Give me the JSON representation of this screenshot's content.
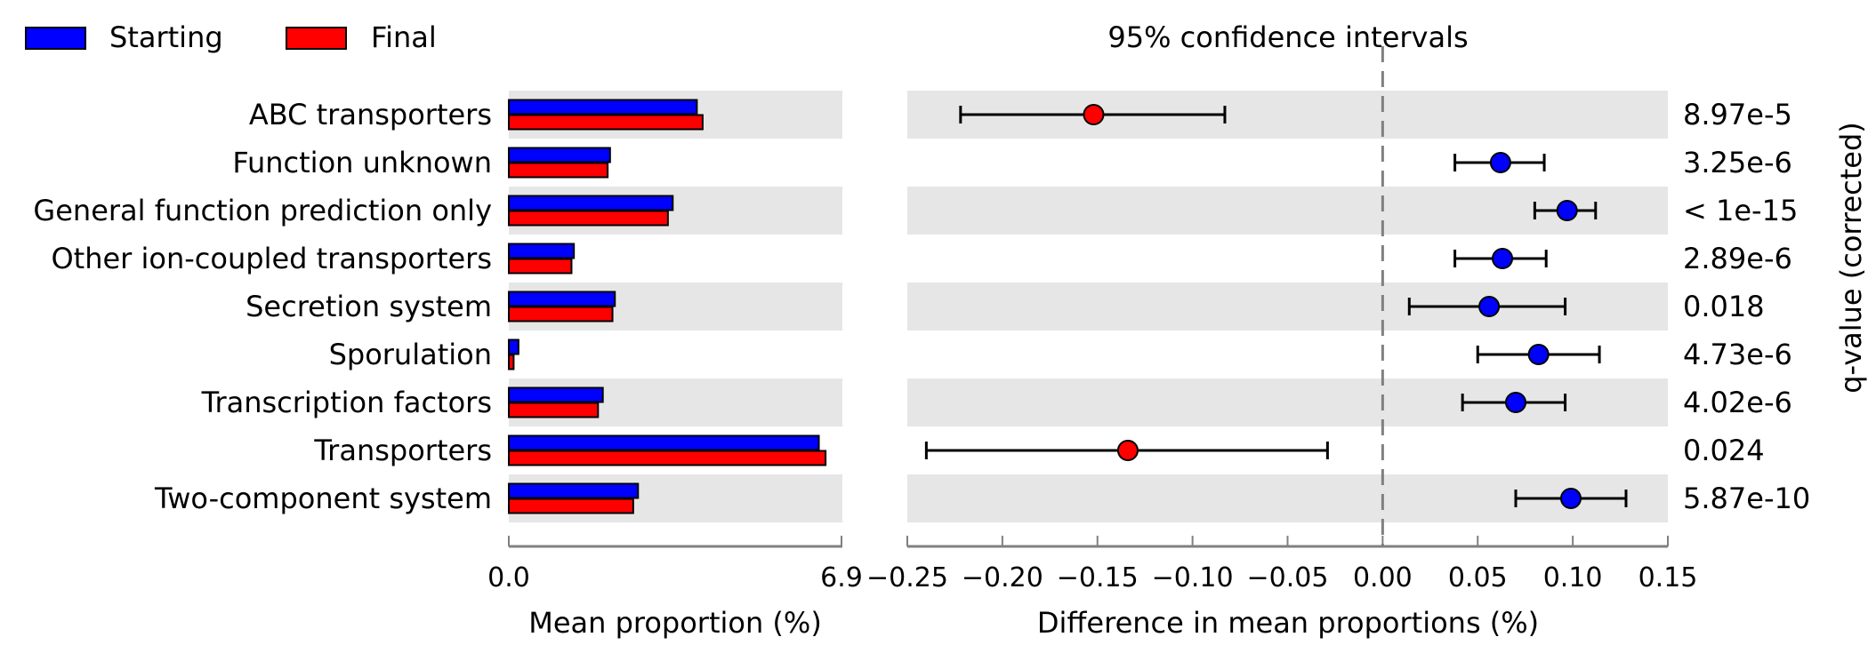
{
  "legend": {
    "items": [
      {
        "label": "Starting",
        "color": "#0000ff"
      },
      {
        "label": "Final",
        "color": "#ff0000"
      }
    ],
    "placement": "top-left"
  },
  "chart_data": [
    {
      "type": "bar",
      "orientation": "horizontal",
      "categories": [
        "ABC transporters",
        "Function unknown",
        "General function prediction only",
        "Other ion-coupled transporters",
        "Secretion system",
        "Sporulation",
        "Transcription factors",
        "Transporters",
        "Two-component system"
      ],
      "series": [
        {
          "name": "Starting",
          "color": "#0000ff",
          "values": [
            3.9,
            2.1,
            3.4,
            1.35,
            2.2,
            0.2,
            1.95,
            6.43,
            2.68
          ]
        },
        {
          "name": "Final",
          "color": "#ff0000",
          "values": [
            4.02,
            2.05,
            3.3,
            1.3,
            2.15,
            0.1,
            1.85,
            6.57,
            2.58
          ]
        }
      ],
      "xlabel": "Mean proportion (%)",
      "xlim": [
        0,
        6.9
      ],
      "xtick_labels": [
        "0.0",
        "6.9"
      ],
      "grid": false,
      "row_shading": "alternating"
    },
    {
      "type": "scatter",
      "subtype": "confidence-interval",
      "title": "95% confidence intervals",
      "categories": [
        "ABC transporters",
        "Function unknown",
        "General function prediction only",
        "Other ion-coupled transporters",
        "Secretion system",
        "Sporulation",
        "Transcription factors",
        "Transporters",
        "Two-component system"
      ],
      "estimates": [
        -0.152,
        0.062,
        0.097,
        0.063,
        0.056,
        0.082,
        0.07,
        -0.134,
        0.099
      ],
      "ci_lower": [
        -0.222,
        0.038,
        0.08,
        0.038,
        0.014,
        0.05,
        0.042,
        -0.24,
        0.07
      ],
      "ci_upper": [
        -0.083,
        0.085,
        0.112,
        0.086,
        0.096,
        0.114,
        0.096,
        -0.029,
        0.128
      ],
      "point_colors": [
        "#ff0000",
        "#0000ff",
        "#0000ff",
        "#0000ff",
        "#0000ff",
        "#0000ff",
        "#0000ff",
        "#ff0000",
        "#0000ff"
      ],
      "xlabel": "Difference in mean proportions (%)",
      "xlim": [
        -0.25,
        0.15
      ],
      "xticks": [
        -0.25,
        -0.2,
        -0.15,
        -0.1,
        -0.05,
        0.0,
        0.05,
        0.1,
        0.15
      ],
      "xtick_labels": [
        "−0.25",
        "−0.20",
        "−0.15",
        "−0.10",
        "−0.05",
        "0.00",
        "0.05",
        "0.10",
        "0.15"
      ],
      "reference_line": 0.0,
      "grid": false,
      "row_shading": "alternating",
      "qvalue_label": "q-value (corrected)",
      "qvalues": [
        "8.97e-5",
        "3.25e-6",
        "< 1e-15",
        "2.89e-6",
        "0.018",
        "4.73e-6",
        "4.02e-6",
        "0.024",
        "5.87e-10"
      ]
    }
  ]
}
